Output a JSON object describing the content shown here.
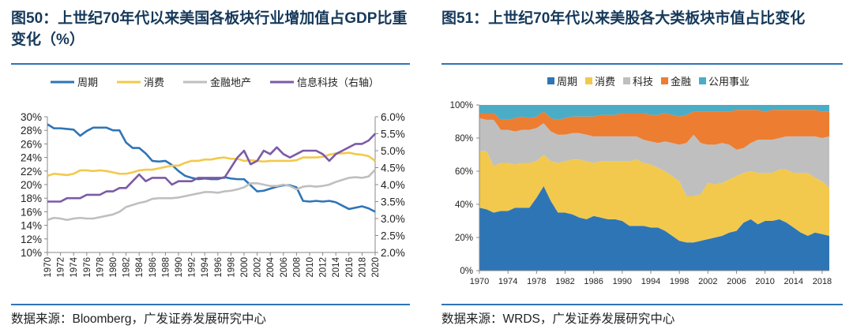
{
  "left": {
    "fig_label": "图50",
    "title": "：上世纪70年代以来美国各板块行业增加值占GDP比重变化（%）",
    "source": "数据来源：Bloomberg，广发证券发展研究中心"
  },
  "right": {
    "fig_label": "图51",
    "title": "：上世纪70年代以来美股各大类板块市值占比变化",
    "source": "数据来源：WRDS，广发证券发展研究中心"
  },
  "chart_data": [
    {
      "type": "line",
      "title": "上世纪70年代以来美国各板块行业增加值占GDP比重变化（%）",
      "x": [
        1970,
        1971,
        1972,
        1973,
        1974,
        1975,
        1976,
        1977,
        1978,
        1979,
        1980,
        1981,
        1982,
        1983,
        1984,
        1985,
        1986,
        1987,
        1988,
        1989,
        1990,
        1991,
        1992,
        1993,
        1994,
        1995,
        1996,
        1997,
        1998,
        1999,
        2000,
        2001,
        2002,
        2003,
        2004,
        2005,
        2006,
        2007,
        2008,
        2009,
        2010,
        2011,
        2012,
        2013,
        2014,
        2015,
        2016,
        2017,
        2018,
        2019,
        2020
      ],
      "x_tick_labels": [
        "1970",
        "1972",
        "1974",
        "1976",
        "1978",
        "1980",
        "1982",
        "1984",
        "1986",
        "1988",
        "1990",
        "1992",
        "1994",
        "1996",
        "1998",
        "2000",
        "2002",
        "2004",
        "2006",
        "2008",
        "2010",
        "2012",
        "2014",
        "2016",
        "2018",
        "2020"
      ],
      "y_left": {
        "lim": [
          10,
          30
        ],
        "ticks": [
          10,
          12,
          14,
          16,
          18,
          20,
          22,
          24,
          26,
          28,
          30
        ],
        "tick_labels": [
          "10%",
          "12%",
          "14%",
          "16%",
          "18%",
          "20%",
          "22%",
          "24%",
          "26%",
          "28%",
          "30%"
        ]
      },
      "y_right": {
        "lim": [
          2.0,
          6.0
        ],
        "ticks": [
          2.0,
          2.5,
          3.0,
          3.5,
          4.0,
          4.5,
          5.0,
          5.5,
          6.0
        ],
        "tick_labels": [
          "2.0%",
          "2.5%",
          "3.0%",
          "3.5%",
          "4.0%",
          "4.5%",
          "5.0%",
          "5.5%",
          "6.0%"
        ]
      },
      "series": [
        {
          "name": "周期",
          "axis": "left",
          "color": "#2e75b6",
          "values": [
            28.9,
            28.3,
            28.3,
            28.2,
            28.1,
            27.2,
            27.9,
            28.4,
            28.4,
            28.4,
            28.0,
            28.0,
            26.2,
            25.4,
            25.4,
            24.6,
            23.5,
            23.4,
            23.5,
            22.9,
            22.0,
            21.3,
            21.0,
            20.8,
            20.9,
            20.8,
            20.8,
            21.1,
            20.9,
            20.8,
            20.8,
            19.9,
            19.0,
            19.1,
            19.4,
            19.7,
            19.9,
            19.9,
            19.6,
            17.6,
            17.5,
            17.6,
            17.5,
            17.6,
            17.4,
            16.9,
            16.4,
            16.6,
            16.8,
            16.5,
            16.0
          ]
        },
        {
          "name": "消费",
          "axis": "left",
          "color": "#f2c94c",
          "values": [
            21.3,
            21.6,
            21.5,
            21.4,
            21.6,
            22.1,
            22.1,
            22.0,
            22.1,
            22.0,
            21.8,
            21.6,
            21.6,
            21.8,
            22.1,
            22.2,
            22.2,
            22.4,
            22.6,
            22.8,
            22.8,
            23.2,
            23.5,
            23.5,
            23.7,
            23.7,
            23.9,
            24.0,
            23.8,
            23.8,
            23.5,
            23.6,
            23.5,
            23.4,
            23.5,
            23.5,
            23.5,
            23.5,
            23.6,
            24.0,
            24.0,
            24.0,
            24.1,
            24.4,
            24.6,
            24.6,
            24.7,
            24.5,
            24.4,
            24.2,
            23.5
          ]
        },
        {
          "name": "金融地产",
          "axis": "left",
          "color": "#bfbfbf",
          "values": [
            14.8,
            15.1,
            15.0,
            14.8,
            15.0,
            15.1,
            15.0,
            15.0,
            15.2,
            15.4,
            15.6,
            16.0,
            16.7,
            17.0,
            17.3,
            17.5,
            17.9,
            18.0,
            18.0,
            18.0,
            18.1,
            18.3,
            18.5,
            18.7,
            18.9,
            18.9,
            18.8,
            19.0,
            19.1,
            19.3,
            19.6,
            20.2,
            20.2,
            20.0,
            19.8,
            19.8,
            20.0,
            19.8,
            19.3,
            19.7,
            19.8,
            19.7,
            19.8,
            20.0,
            20.4,
            20.7,
            21.0,
            21.1,
            21.0,
            21.2,
            22.2
          ]
        },
        {
          "name": "信息科技（右轴）",
          "axis": "right",
          "color": "#7c5aa6",
          "values": [
            3.5,
            3.5,
            3.5,
            3.6,
            3.6,
            3.6,
            3.7,
            3.7,
            3.7,
            3.8,
            3.8,
            3.9,
            3.9,
            4.1,
            4.3,
            4.1,
            4.2,
            4.2,
            4.2,
            4.0,
            4.1,
            4.1,
            4.1,
            4.2,
            4.2,
            4.2,
            4.2,
            4.2,
            4.5,
            4.8,
            5.0,
            4.6,
            4.7,
            5.0,
            4.9,
            5.1,
            4.9,
            4.8,
            4.9,
            5.0,
            5.0,
            5.0,
            4.9,
            4.7,
            4.9,
            5.0,
            5.1,
            5.2,
            5.2,
            5.3,
            5.5
          ]
        }
      ]
    },
    {
      "type": "area",
      "stacked": true,
      "title": "上世纪70年代以来美股各大类板块市值占比变化",
      "x": [
        1970,
        1971,
        1972,
        1973,
        1974,
        1975,
        1976,
        1977,
        1978,
        1979,
        1980,
        1981,
        1982,
        1983,
        1984,
        1985,
        1986,
        1987,
        1988,
        1989,
        1990,
        1991,
        1992,
        1993,
        1994,
        1995,
        1996,
        1997,
        1998,
        1999,
        2000,
        2001,
        2002,
        2003,
        2004,
        2005,
        2006,
        2007,
        2008,
        2009,
        2010,
        2011,
        2012,
        2013,
        2014,
        2015,
        2016,
        2017,
        2018,
        2019
      ],
      "x_tick_labels": [
        "1970",
        "1974",
        "1978",
        "1982",
        "1986",
        "1990",
        "1994",
        "1998",
        "2002",
        "2006",
        "2010",
        "2014",
        "2018"
      ],
      "ylim": [
        0,
        100
      ],
      "y_tick_labels": [
        "0%",
        "20%",
        "40%",
        "60%",
        "80%",
        "100%"
      ],
      "legend_position": "top",
      "series": [
        {
          "name": "周期",
          "color": "#2e75b6",
          "values": [
            38,
            37,
            35,
            36,
            36,
            38,
            38,
            38,
            44,
            51,
            42,
            35,
            35,
            34,
            32,
            31,
            33,
            32,
            31,
            31,
            30,
            27,
            27,
            27,
            26,
            26,
            24,
            21,
            18,
            17,
            17,
            18,
            19,
            20,
            21,
            23,
            24,
            29,
            31,
            28,
            30,
            30,
            31,
            29,
            26,
            23,
            21,
            23,
            22,
            21
          ]
        },
        {
          "name": "消费",
          "color": "#f2c94c",
          "values": [
            34,
            35,
            28,
            29,
            29,
            26,
            27,
            27,
            22,
            19,
            24,
            30,
            31,
            33,
            35,
            35,
            32,
            34,
            35,
            35,
            36,
            39,
            40,
            38,
            38,
            36,
            36,
            36,
            36,
            28,
            28,
            28,
            34,
            32,
            32,
            32,
            33,
            30,
            29,
            31,
            29,
            29,
            30,
            32,
            33,
            36,
            38,
            33,
            32,
            29
          ]
        },
        {
          "name": "科技",
          "color": "#bfbfbf",
          "values": [
            20,
            19,
            28,
            20,
            20,
            20,
            20,
            20,
            20,
            19,
            18,
            17,
            16,
            16,
            16,
            16,
            16,
            15,
            15,
            15,
            15,
            15,
            14,
            14,
            14,
            15,
            18,
            20,
            22,
            32,
            37,
            31,
            23,
            24,
            24,
            21,
            16,
            15,
            17,
            20,
            20,
            20,
            19,
            20,
            22,
            22,
            22,
            25,
            26,
            31
          ]
        },
        {
          "name": "金融",
          "color": "#ed7d31",
          "values": [
            3,
            4,
            4,
            6,
            6,
            8,
            8,
            7,
            7,
            7,
            8,
            9,
            10,
            10,
            10,
            11,
            12,
            13,
            13,
            13,
            14,
            14,
            14,
            16,
            16,
            17,
            17,
            17,
            17,
            17,
            14,
            19,
            20,
            20,
            19,
            20,
            24,
            23,
            20,
            18,
            17,
            18,
            17,
            16,
            16,
            16,
            16,
            16,
            16,
            15
          ]
        },
        {
          "name": "公用事业",
          "color": "#4bacc6",
          "values": [
            5,
            5,
            5,
            9,
            9,
            8,
            7,
            8,
            7,
            4,
            8,
            9,
            8,
            7,
            7,
            7,
            7,
            6,
            6,
            6,
            5,
            5,
            5,
            5,
            6,
            6,
            5,
            6,
            7,
            6,
            4,
            4,
            4,
            4,
            4,
            4,
            3,
            3,
            3,
            3,
            4,
            3,
            3,
            3,
            3,
            3,
            3,
            3,
            4,
            4
          ]
        }
      ]
    }
  ]
}
